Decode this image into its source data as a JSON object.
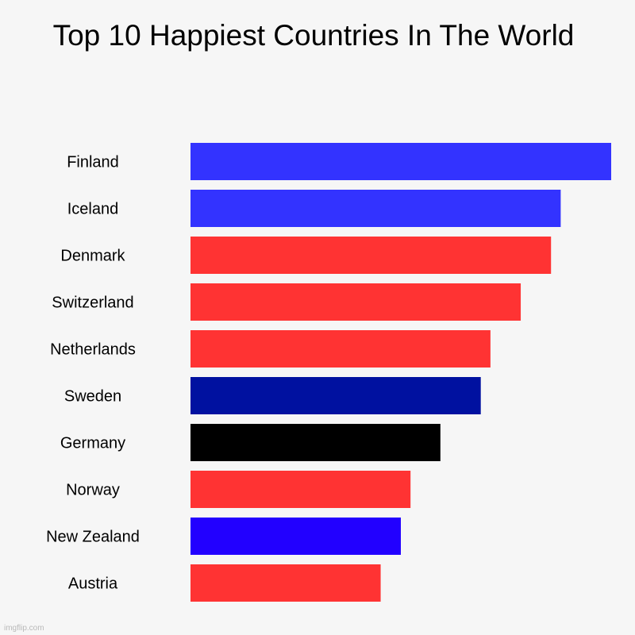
{
  "chart_data": {
    "type": "bar",
    "orientation": "horizontal",
    "title": "Top 10 Happiest Countries In The World",
    "xlabel": "",
    "ylabel": "",
    "categories": [
      "Finland",
      "Iceland",
      "Denmark",
      "Switzerland",
      "Netherlands",
      "Sweden",
      "Germany",
      "Norway",
      "New Zealand",
      "Austria"
    ],
    "values": [
      100,
      88,
      85.7,
      78.5,
      71.3,
      69,
      59.4,
      52.3,
      50,
      45.2
    ],
    "colors": [
      "#3333ff",
      "#3333ff",
      "#ff3333",
      "#ff3333",
      "#ff3333",
      "#0011a0",
      "#000000",
      "#ff3333",
      "#2200ff",
      "#ff3333"
    ],
    "xlim": [
      0,
      100
    ],
    "grid": false,
    "legend": "none"
  },
  "watermark": "imgflip.com"
}
